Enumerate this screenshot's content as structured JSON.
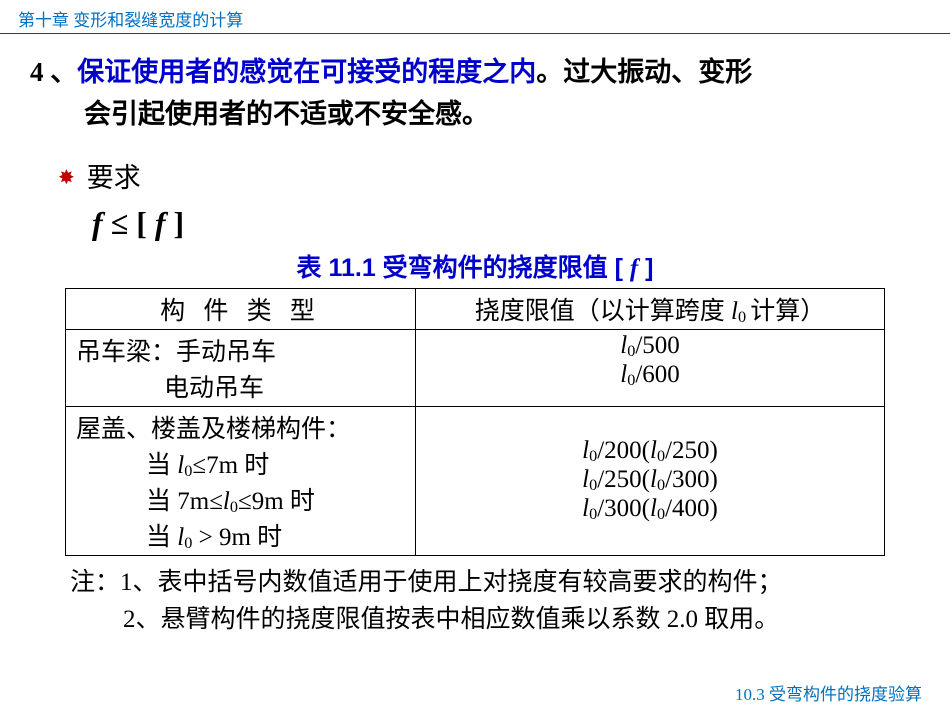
{
  "header": "第十章  变形和裂缝宽度的计算",
  "point4": {
    "num": "4 、",
    "blue": "保证使用者的感觉在可接受的程度之内",
    "black_after": "。过大振动、变形",
    "line2": "会引起使用者的不适或不安全感。"
  },
  "requirement_label": "要求",
  "formula_lhs": "f",
  "formula_op": " ≤ ",
  "formula_rhs_open": "[ ",
  "formula_rhs_f": "f",
  "formula_rhs_close": " ]",
  "caption_prefix": "表 11.1  受弯构件的挠度限值",
  "caption_bracket_open": " [ ",
  "caption_f": "f",
  "caption_bracket_close": " ]",
  "col1_header": "构  件  类  型",
  "col2_header_pre": "挠度限值（以计算跨度 ",
  "col2_header_l": "l",
  "col2_header_sub": "0 ",
  "col2_header_post": "计算）",
  "r1c1a": "吊车梁：手动吊车",
  "r1c1b": "电动吊车",
  "r1c2a_l": "l",
  "r1c2a_sub": "0",
  "r1c2a_rest": "/500",
  "r1c2b_l": "l",
  "r1c2b_sub": "0",
  "r1c2b_rest": "/600",
  "r2c1_head": "屋盖、楼盖及楼梯构件：",
  "r2c1_a_pre": "当 ",
  "r2c1_a_l": "l",
  "r2c1_a_sub": "0",
  "r2c1_a_post": "≤7m 时",
  "r2c1_b_pre": "当 7m≤",
  "r2c1_b_l": "l",
  "r2c1_b_sub": "0",
  "r2c1_b_post": "≤9m 时",
  "r2c1_c_pre": "当 ",
  "r2c1_c_l": "l",
  "r2c1_c_sub": "0",
  "r2c1_c_post": " > 9m 时",
  "r2c2_a": "/200(",
  "r2c2_a2": "/250)",
  "r2c2_b": "/250(",
  "r2c2_b2": "/300)",
  "r2c2_c": "/300(",
  "r2c2_c2": "/400)",
  "l_char": "l",
  "sub0": "0",
  "note_lead": "注：",
  "note1": "1、表中括号内数值适用于使用上对挠度有较高要求的构件；",
  "note2": "2、悬臂构件的挠度限值按表中相应数值乘以系数 2.0 取用。",
  "footer": "10.3  受弯构件的挠度验算"
}
